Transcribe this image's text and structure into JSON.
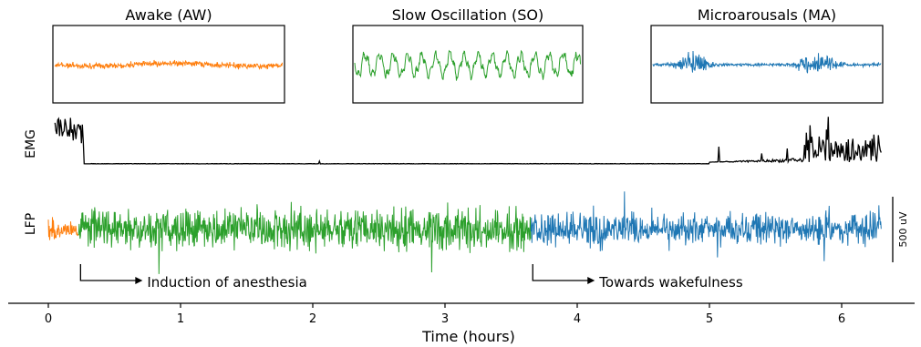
{
  "chart_data": {
    "type": "line",
    "insets": [
      {
        "title": "Awake (AW)",
        "color": "#ff7f0e",
        "pattern": "low-amplitude fast noise"
      },
      {
        "title": "Slow Oscillation (SO)",
        "color": "#2ca02c",
        "pattern": "high-amplitude slow oscillation"
      },
      {
        "title": "Microarousals (MA)",
        "color": "#1f77b4",
        "pattern": "bursts over baseline"
      }
    ],
    "row_labels": {
      "emg": "EMG",
      "lfp": "LFP"
    },
    "x": {
      "label": "Time (hours)",
      "ticks": [
        "0",
        "1",
        "2",
        "3",
        "4",
        "5",
        "6"
      ],
      "tick_values": [
        0,
        1,
        2,
        3,
        4,
        5,
        6
      ],
      "range": [
        -0.3,
        6.6
      ]
    },
    "emg": {
      "color": "#000000",
      "high_until": 0.27,
      "flat_from": 0.27,
      "flat_to": 5.0,
      "active_from": 5.0,
      "end": 6.3
    },
    "lfp": {
      "segments": [
        {
          "state": "AW",
          "start": 0.0,
          "end": 0.23,
          "color": "#ff7f0e"
        },
        {
          "state": "SO",
          "start": 0.23,
          "end": 3.65,
          "color": "#2ca02c"
        },
        {
          "state": "MA",
          "start": 3.65,
          "end": 6.3,
          "color": "#1f77b4"
        }
      ]
    },
    "annotations": [
      {
        "text": "Induction of anesthesia",
        "time": 0.23
      },
      {
        "text": "Towards wakefulness",
        "time": 3.65
      }
    ],
    "scale_bar": {
      "label": "500 uV"
    }
  }
}
